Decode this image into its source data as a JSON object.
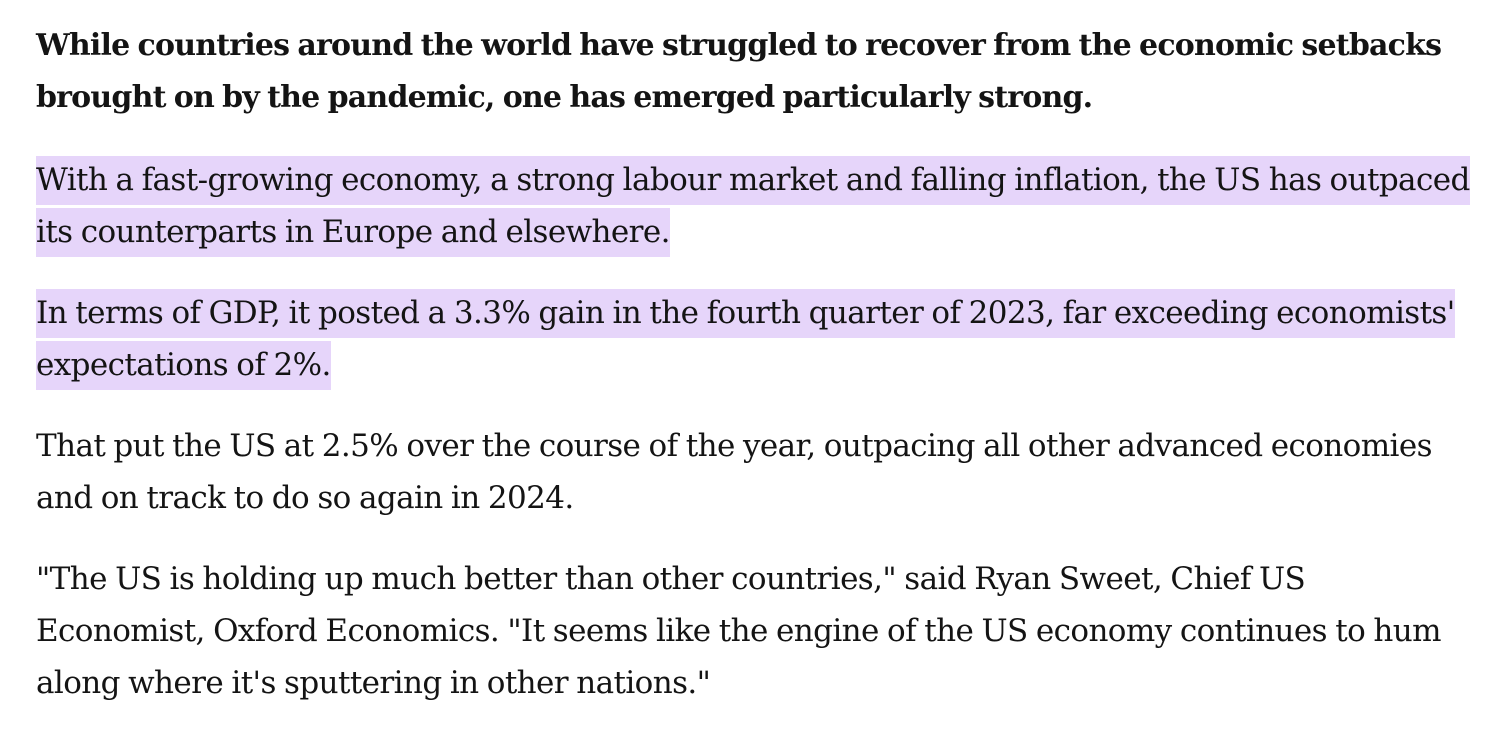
{
  "article": {
    "paragraphs": [
      {
        "text": "While countries around the world have struggled to recover from the economic setbacks brought on by the pandemic, one has emerged particularly strong.",
        "bold": true,
        "highlighted": false
      },
      {
        "text": "With a fast-growing economy, a strong labour market and falling inflation, the US has outpaced its counterparts in Europe and elsewhere.",
        "bold": false,
        "highlighted": true
      },
      {
        "text": "In terms of GDP, it posted a 3.3% gain in the fourth quarter of 2023, far exceeding economists' expectations of 2%.",
        "bold": false,
        "highlighted": true
      },
      {
        "text": "That put the US at 2.5% over the course of the year, outpacing all other advanced economies and on track to do so again in 2024.",
        "bold": false,
        "highlighted": false
      },
      {
        "text": "\"The US is holding up much better than other countries,\" said Ryan Sweet, Chief US Economist, Oxford Economics. \"It seems like the engine of the US economy continues to hum along where it's sputtering in other nations.\"",
        "bold": false,
        "highlighted": false
      }
    ]
  },
  "colors": {
    "text": "#141414",
    "highlight": "#e6d5fa",
    "background": "#ffffff"
  }
}
